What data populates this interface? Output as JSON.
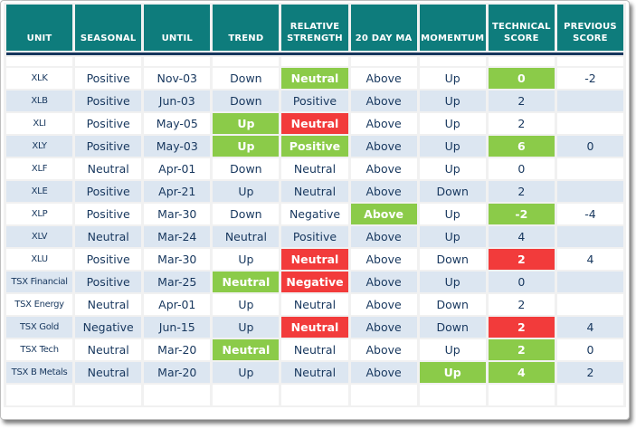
{
  "colors": {
    "header_bg": "#0E7C7C",
    "divider": "#17375D",
    "row_alt": "#DCE6F1",
    "green": "#8BCB49",
    "red": "#F23B3B",
    "text": "#17375E",
    "gap": "#F1F1F1",
    "frame_border": "#BDBDBD"
  },
  "chart_data": {
    "type": "table",
    "columns": [
      "UNIT",
      "SEASONAL",
      "UNTIL",
      "TREND",
      "RELATIVE STRENGTH",
      "20 DAY MA",
      "MOMENTUM",
      "TECHNICAL SCORE",
      "PREVIOUS SCORE"
    ],
    "cell_keys": [
      "unit",
      "seasonal",
      "until",
      "trend",
      "relative_strength",
      "twenty_day_ma",
      "momentum",
      "technical_score",
      "previous_score"
    ],
    "highlight_legend": {
      "green": "positive highlight",
      "red": "negative highlight"
    },
    "rows": [
      {
        "unit": "XLK",
        "seasonal": "Positive",
        "until": "Nov-03",
        "trend": "Down",
        "relative_strength": {
          "text": "Neutral",
          "hl": "green"
        },
        "twenty_day_ma": "Above",
        "momentum": "Up",
        "technical_score": {
          "text": "0",
          "hl": "green"
        },
        "previous_score": "-2"
      },
      {
        "unit": "XLB",
        "seasonal": "Positive",
        "until": "Jun-03",
        "trend": "Down",
        "relative_strength": "Positive",
        "twenty_day_ma": "Above",
        "momentum": "Up",
        "technical_score": "2",
        "previous_score": ""
      },
      {
        "unit": "XLI",
        "seasonal": "Positive",
        "until": "May-05",
        "trend": {
          "text": "Up",
          "hl": "green"
        },
        "relative_strength": {
          "text": "Neutral",
          "hl": "red"
        },
        "twenty_day_ma": "Above",
        "momentum": "Up",
        "technical_score": "2",
        "previous_score": ""
      },
      {
        "unit": "XLY",
        "seasonal": "Positive",
        "until": "May-03",
        "trend": {
          "text": "Up",
          "hl": "green"
        },
        "relative_strength": {
          "text": "Positive",
          "hl": "green"
        },
        "twenty_day_ma": "Above",
        "momentum": "Up",
        "technical_score": {
          "text": "6",
          "hl": "green"
        },
        "previous_score": "0"
      },
      {
        "unit": "XLF",
        "seasonal": "Neutral",
        "until": "Apr-01",
        "trend": "Down",
        "relative_strength": "Neutral",
        "twenty_day_ma": "Above",
        "momentum": "Up",
        "technical_score": "0",
        "previous_score": ""
      },
      {
        "unit": "XLE",
        "seasonal": "Positive",
        "until": "Apr-21",
        "trend": "Up",
        "relative_strength": "Neutral",
        "twenty_day_ma": "Above",
        "momentum": "Down",
        "technical_score": "2",
        "previous_score": ""
      },
      {
        "unit": "XLP",
        "seasonal": "Positive",
        "until": "Mar-30",
        "trend": "Down",
        "relative_strength": "Negative",
        "twenty_day_ma": {
          "text": "Above",
          "hl": "green"
        },
        "momentum": "Up",
        "technical_score": {
          "text": "-2",
          "hl": "green"
        },
        "previous_score": "-4"
      },
      {
        "unit": "XLV",
        "seasonal": "Neutral",
        "until": "Mar-24",
        "trend": "Neutral",
        "relative_strength": "Positive",
        "twenty_day_ma": "Above",
        "momentum": "Up",
        "technical_score": "4",
        "previous_score": ""
      },
      {
        "unit": "XLU",
        "seasonal": "Positive",
        "until": "Mar-30",
        "trend": "Up",
        "relative_strength": {
          "text": "Neutral",
          "hl": "red"
        },
        "twenty_day_ma": "Above",
        "momentum": "Down",
        "technical_score": {
          "text": "2",
          "hl": "red"
        },
        "previous_score": "4"
      },
      {
        "unit": "TSX Financial",
        "seasonal": "Positive",
        "until": "Mar-25",
        "trend": {
          "text": "Neutral",
          "hl": "green"
        },
        "relative_strength": {
          "text": "Negative",
          "hl": "red"
        },
        "twenty_day_ma": "Above",
        "momentum": "Up",
        "technical_score": "0",
        "previous_score": ""
      },
      {
        "unit": "TSX Energy",
        "seasonal": "Neutral",
        "until": "Apr-01",
        "trend": "Up",
        "relative_strength": "Neutral",
        "twenty_day_ma": "Above",
        "momentum": "Down",
        "technical_score": "2",
        "previous_score": ""
      },
      {
        "unit": "TSX Gold",
        "seasonal": "Negative",
        "until": "Jun-15",
        "trend": "Up",
        "relative_strength": {
          "text": "Neutral",
          "hl": "red"
        },
        "twenty_day_ma": "Above",
        "momentum": "Down",
        "technical_score": {
          "text": "2",
          "hl": "red"
        },
        "previous_score": "4"
      },
      {
        "unit": "TSX Tech",
        "seasonal": "Neutral",
        "until": "Mar-20",
        "trend": {
          "text": "Neutral",
          "hl": "green"
        },
        "relative_strength": "Neutral",
        "twenty_day_ma": "Above",
        "momentum": "Up",
        "technical_score": {
          "text": "2",
          "hl": "green"
        },
        "previous_score": "0"
      },
      {
        "unit": "TSX B Metals",
        "seasonal": "Neutral",
        "until": "Mar-20",
        "trend": "Up",
        "relative_strength": "Neutral",
        "twenty_day_ma": "Above",
        "momentum": {
          "text": "Up",
          "hl": "green"
        },
        "technical_score": {
          "text": "4",
          "hl": "green"
        },
        "previous_score": "2"
      }
    ],
    "trailing_empty_row": true
  }
}
